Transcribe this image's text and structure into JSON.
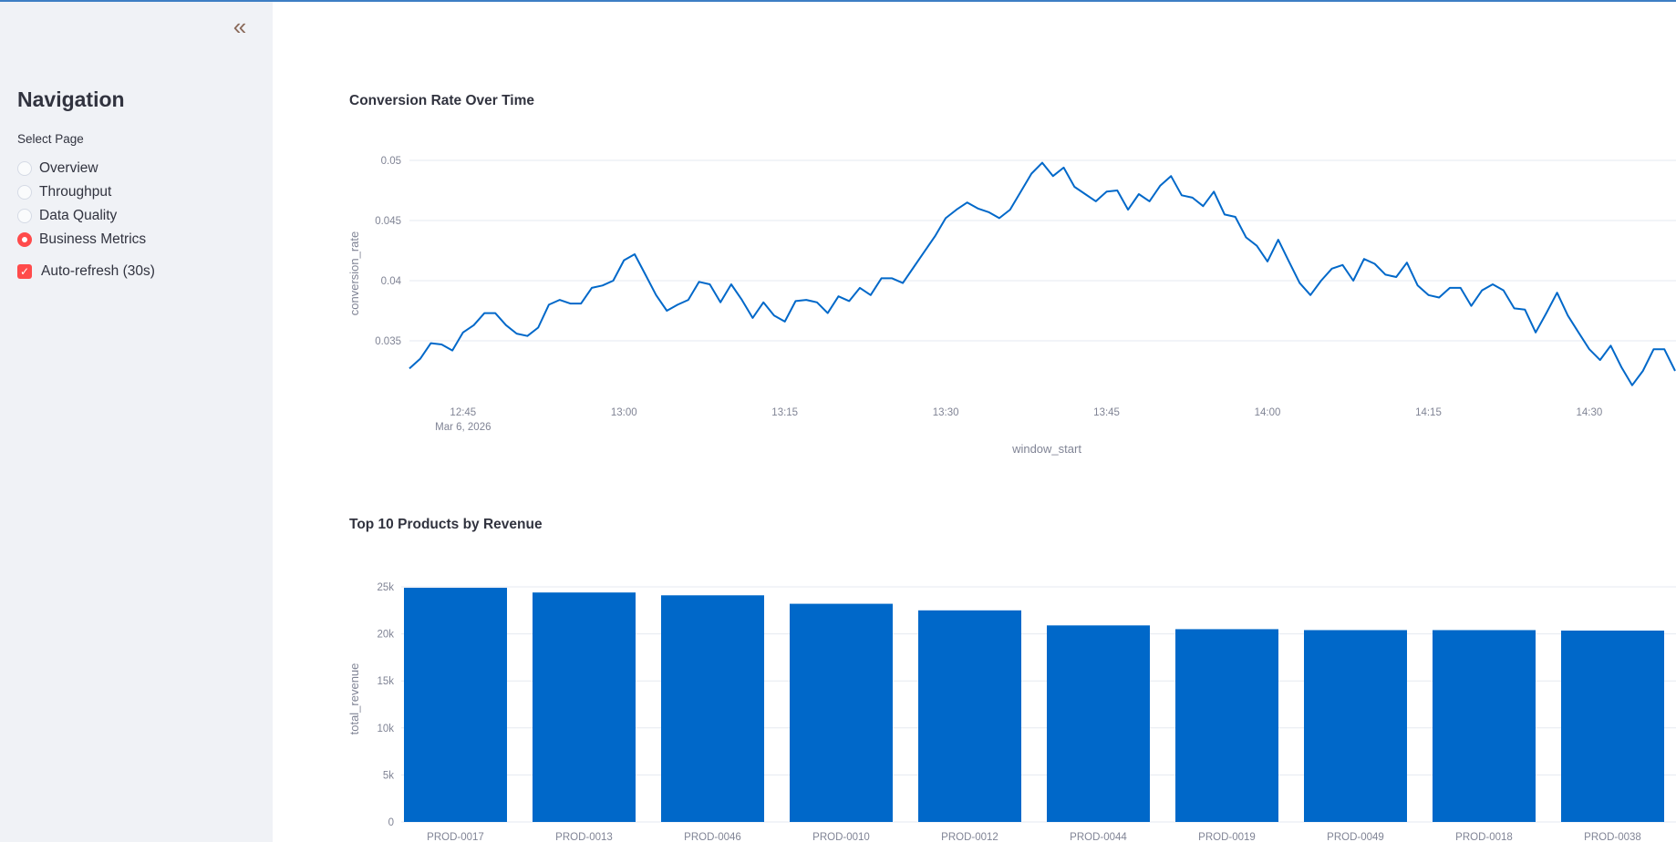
{
  "sidebar": {
    "collapse_icon": "«",
    "title": "Navigation",
    "select_label": "Select Page",
    "pages": [
      {
        "label": "Overview",
        "selected": false
      },
      {
        "label": "Throughput",
        "selected": false
      },
      {
        "label": "Data Quality",
        "selected": false
      },
      {
        "label": "Business Metrics",
        "selected": true
      }
    ],
    "auto_refresh": {
      "label": "Auto-refresh (30s)",
      "checked": true
    }
  },
  "colors": {
    "accent": "#ff4b4b",
    "series": "#0068c9",
    "top_border": "#3d7ec4",
    "sidebar_bg": "#f0f2f6",
    "grid": "#e6eaf1",
    "tick_text": "#808495"
  },
  "main": {
    "line_chart_title": "Conversion Rate Over Time",
    "bar_chart_title": "Top 10 Products by Revenue"
  },
  "chart_data": [
    {
      "type": "line",
      "title": "Conversion Rate Over Time",
      "xlabel": "window_start",
      "ylabel": "conversion_rate",
      "x_start": "12:40",
      "x_step_minutes": 1,
      "x_date_label": "Mar 6, 2026",
      "x_ticks": [
        "12:45",
        "13:00",
        "13:15",
        "13:30",
        "13:45",
        "14:00",
        "14:15",
        "14:30"
      ],
      "y_ticks": [
        "0.035",
        "0.04",
        "0.045",
        "0.05"
      ],
      "y_tick_values": [
        0.035,
        0.04,
        0.045,
        0.05
      ],
      "grid": true,
      "values": [
        0.0327,
        0.0335,
        0.0348,
        0.0347,
        0.0342,
        0.0357,
        0.0363,
        0.0373,
        0.0373,
        0.0363,
        0.0356,
        0.0354,
        0.0361,
        0.038,
        0.0384,
        0.0381,
        0.0381,
        0.0394,
        0.0396,
        0.04,
        0.0417,
        0.0422,
        0.0405,
        0.0388,
        0.0375,
        0.038,
        0.0384,
        0.0399,
        0.0397,
        0.0382,
        0.0397,
        0.0384,
        0.0369,
        0.0382,
        0.0371,
        0.0366,
        0.0383,
        0.0384,
        0.0382,
        0.0373,
        0.0387,
        0.0383,
        0.0394,
        0.0388,
        0.0402,
        0.0402,
        0.0398,
        0.0411,
        0.0424,
        0.0437,
        0.0452,
        0.0459,
        0.0465,
        0.046,
        0.0457,
        0.0452,
        0.0459,
        0.0474,
        0.0489,
        0.0498,
        0.0487,
        0.0494,
        0.0478,
        0.0472,
        0.0466,
        0.0474,
        0.0475,
        0.0459,
        0.0472,
        0.0466,
        0.0479,
        0.0487,
        0.0471,
        0.0469,
        0.0462,
        0.0474,
        0.0455,
        0.0453,
        0.0436,
        0.0429,
        0.0416,
        0.0434,
        0.0416,
        0.0398,
        0.0388,
        0.04,
        0.041,
        0.0413,
        0.04,
        0.0418,
        0.0414,
        0.0405,
        0.0403,
        0.0415,
        0.0396,
        0.0388,
        0.0386,
        0.0394,
        0.0394,
        0.0379,
        0.0392,
        0.0397,
        0.0392,
        0.0377,
        0.0376,
        0.0357,
        0.0373,
        0.039,
        0.0371,
        0.0357,
        0.0343,
        0.0334,
        0.0346,
        0.0328,
        0.0313,
        0.0325,
        0.0343,
        0.0343,
        0.0325
      ]
    },
    {
      "type": "bar",
      "title": "Top 10 Products by Revenue",
      "xlabel": "",
      "ylabel": "total_revenue",
      "categories": [
        "PROD-0017",
        "PROD-0013",
        "PROD-0046",
        "PROD-0010",
        "PROD-0012",
        "PROD-0044",
        "PROD-0019",
        "PROD-0049",
        "PROD-0018",
        "PROD-0038"
      ],
      "values": [
        24900,
        24400,
        24100,
        23200,
        22500,
        20900,
        20500,
        20400,
        20400,
        20350
      ],
      "y_ticks": [
        "0",
        "5k",
        "10k",
        "15k",
        "20k",
        "25k"
      ],
      "y_tick_values": [
        0,
        5000,
        10000,
        15000,
        20000,
        25000
      ],
      "ylim": [
        0,
        25000
      ],
      "grid": true
    }
  ]
}
